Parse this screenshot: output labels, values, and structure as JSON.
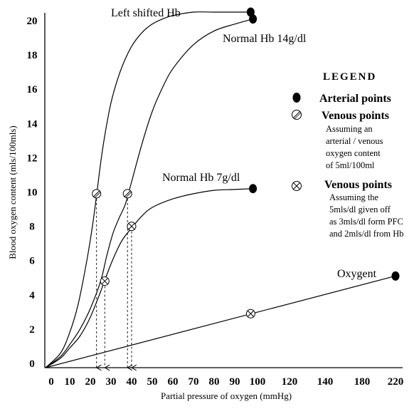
{
  "chart_data": {
    "type": "line",
    "title": "",
    "xlabel": "Partial pressure of oxygen (mmHg)",
    "ylabel": "Blood oxygen content (mls/100mls)",
    "x_ticks": [
      "0",
      "10",
      "20",
      "30",
      "40",
      "50",
      "60",
      "70",
      "80",
      "90",
      "100",
      "120",
      "140",
      "180",
      "220"
    ],
    "x_tick_values": [
      0,
      10,
      20,
      30,
      40,
      50,
      60,
      70,
      80,
      90,
      100,
      120,
      140,
      180,
      220
    ],
    "y_ticks": [
      "0",
      "2",
      "4",
      "6",
      "8",
      "10",
      "12",
      "14",
      "16",
      "18",
      "20"
    ],
    "ylim": [
      0,
      20.5
    ],
    "grid": false,
    "legend_position": "right",
    "series": [
      {
        "name": "Left shifted Hb",
        "color": "#000000",
        "x": [
          0,
          5,
          10,
          14,
          18,
          21,
          23,
          25,
          27,
          30,
          33,
          36,
          40,
          45,
          50,
          55,
          60,
          70,
          80,
          90,
          97
        ],
        "y": [
          0,
          0.6,
          1.8,
          3.4,
          5.8,
          8.0,
          9.8,
          11.7,
          13.3,
          15.2,
          16.5,
          17.5,
          18.5,
          19.3,
          19.8,
          20.1,
          20.3,
          20.5,
          20.5,
          20.5,
          20.5
        ]
      },
      {
        "name": "Normal Hb 14g/dl",
        "color": "#000000",
        "x": [
          0,
          5,
          10,
          15,
          20,
          25,
          28,
          31,
          34,
          37,
          40,
          45,
          50,
          55,
          60,
          70,
          80,
          90,
          98
        ],
        "y": [
          0,
          0.4,
          1.1,
          2.0,
          3.2,
          4.8,
          6.3,
          7.6,
          8.5,
          9.3,
          10.6,
          12.8,
          14.7,
          16.1,
          17.2,
          18.6,
          19.4,
          19.8,
          20.1
        ]
      },
      {
        "name": "Normal Hb 7g/dl",
        "color": "#000000",
        "x": [
          0,
          5,
          10,
          15,
          20,
          25,
          30,
          35,
          40,
          45,
          50,
          60,
          70,
          80,
          90,
          98
        ],
        "y": [
          0,
          0.3,
          0.9,
          1.6,
          2.7,
          4.2,
          5.8,
          7.1,
          7.9,
          8.6,
          9.1,
          9.6,
          9.9,
          10.1,
          10.15,
          10.2
        ]
      },
      {
        "name": "Oxygent",
        "color": "#000000",
        "x": [
          0,
          220
        ],
        "y": [
          0,
          5.1
        ]
      }
    ],
    "arterial_points": [
      {
        "x": 97,
        "y": 20.5
      },
      {
        "x": 98,
        "y": 20.1
      },
      {
        "x": 98,
        "y": 10.2
      },
      {
        "x": 220,
        "y": 5.1
      }
    ],
    "venous_points": [
      {
        "x": 23,
        "y": 9.9
      },
      {
        "x": 38,
        "y": 9.9
      }
    ],
    "venous_points_crossed": [
      {
        "x": 27,
        "y": 4.8
      },
      {
        "x": 40,
        "y": 8.0
      },
      {
        "x": 97,
        "y": 2.9
      }
    ],
    "dashed_drops": [
      {
        "x": 23,
        "from_y": 9.9
      },
      {
        "x": 27,
        "from_y": 4.8
      },
      {
        "x": 38,
        "from_y": 9.9
      },
      {
        "x": 40,
        "from_y": 8.0
      }
    ],
    "curve_labels": {
      "left_shifted": "Left shifted Hb",
      "normal_14": "Normal Hb 14g/dl",
      "normal_7": "Normal Hb 7g/dl",
      "oxygent": "Oxygent"
    },
    "legend": {
      "title": "LEGEND",
      "arterial_label": "Arterial points",
      "venous_label": "Venous points",
      "venous_note": [
        "Assuming an",
        "arterial / venous",
        "oxygen content",
        "of 5ml/100ml"
      ],
      "venous2_label": "Venous points",
      "venous2_note": [
        "Assuming the",
        "5mls/dl given off",
        "as 3mls/dl form PFC",
        "and 2mls/dl from Hb"
      ]
    }
  }
}
